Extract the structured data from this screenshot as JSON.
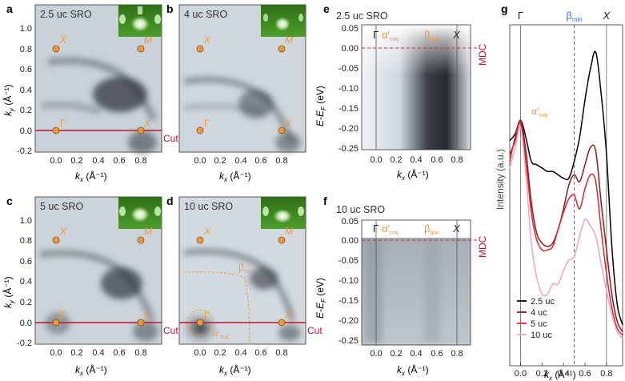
{
  "panels": {
    "a": {
      "letter": "a",
      "sample": "2.5 uc SRO"
    },
    "b": {
      "letter": "b",
      "sample": "4 uc SRO"
    },
    "c": {
      "letter": "c",
      "sample": "5 uc SRO"
    },
    "d": {
      "letter": "d",
      "sample": "10 uc SRO"
    },
    "e": {
      "letter": "e",
      "sample": "2.5 uc SRO"
    },
    "f": {
      "letter": "f",
      "sample": "10 uc SRO"
    },
    "g": {
      "letter": "g"
    }
  },
  "points": {
    "gamma": "Γ",
    "x": "X",
    "m": "M",
    "x_bar": "X̄"
  },
  "bands": {
    "alpha_maj": "α′",
    "alpha_sub": "maj",
    "beta": "β",
    "beta_sub": "min"
  },
  "labels": {
    "cut": "Cut",
    "mdc": "MDC"
  },
  "axes": {
    "ky_label": "k",
    "ky_sub": "y",
    "ky_unit": " (Å⁻¹)",
    "kx_label": "k",
    "kx_sub": "x",
    "kx_unit": " (Å⁻¹)",
    "energy_label": "E-E",
    "energy_sub": "F",
    "energy_unit": " (eV)",
    "intensity_label": "Intensity (a.u.)",
    "ky_ticks": [
      "1.0",
      "0.8",
      "0.6",
      "0.4",
      "0.2",
      "0.0",
      "-0.2"
    ],
    "kx_ticks": [
      "0.0",
      "0.2",
      "0.4",
      "0.6",
      "0.8"
    ],
    "e_ticks": [
      "0.05",
      "0.00",
      "-0.05",
      "-0.10",
      "-0.15",
      "-0.20",
      "-0.25"
    ]
  },
  "colors": {
    "orange": "#ef9a3c",
    "cut_red": "#c8102e",
    "beta_blue": "#4a6fd6",
    "led_green": "#3f8f23"
  },
  "chart_data": {
    "type": "line",
    "xlabel": "k_x (Å⁻¹)",
    "ylabel": "Intensity (a.u.)",
    "xlim": [
      -0.1,
      0.95
    ],
    "x_ticks": [
      0.0,
      0.2,
      0.4,
      0.6,
      0.8
    ],
    "markers": [
      {
        "label": "Γ",
        "x": 0.0,
        "style": "solid"
      },
      {
        "label": "β_min",
        "x": 0.5,
        "style": "dashed"
      },
      {
        "label": "X",
        "x": 0.8,
        "style": "solid"
      }
    ],
    "legend_placement": "bottom-left",
    "x": [
      -0.1,
      -0.05,
      0.0,
      0.05,
      0.1,
      0.15,
      0.2,
      0.25,
      0.3,
      0.35,
      0.4,
      0.45,
      0.5,
      0.55,
      0.6,
      0.65,
      0.7,
      0.75,
      0.8,
      0.85,
      0.9,
      0.95
    ],
    "series": [
      {
        "name": "2.5 uc",
        "color": "#000000",
        "values": [
          0.66,
          0.68,
          0.72,
          0.67,
          0.6,
          0.59,
          0.58,
          0.57,
          0.57,
          0.56,
          0.55,
          0.55,
          0.6,
          0.67,
          0.78,
          0.87,
          0.92,
          0.8,
          0.62,
          0.35,
          0.18,
          0.12
        ]
      },
      {
        "name": "4 uc",
        "color": "#8b1a1a",
        "values": [
          0.62,
          0.66,
          0.72,
          0.63,
          0.48,
          0.39,
          0.36,
          0.35,
          0.36,
          0.4,
          0.46,
          0.53,
          0.56,
          0.54,
          0.59,
          0.64,
          0.63,
          0.48,
          0.34,
          0.21,
          0.13,
          0.1
        ]
      },
      {
        "name": "5 uc",
        "color": "#e5222d",
        "values": [
          0.6,
          0.67,
          0.71,
          0.6,
          0.45,
          0.37,
          0.34,
          0.34,
          0.35,
          0.4,
          0.45,
          0.49,
          0.5,
          0.46,
          0.52,
          0.56,
          0.54,
          0.4,
          0.27,
          0.17,
          0.11,
          0.09
        ]
      },
      {
        "name": "10 uc",
        "color": "#f2a3bf",
        "values": [
          0.58,
          0.64,
          0.7,
          0.56,
          0.36,
          0.26,
          0.21,
          0.21,
          0.24,
          0.24,
          0.28,
          0.31,
          0.32,
          0.38,
          0.43,
          0.41,
          0.38,
          0.3,
          0.22,
          0.15,
          0.1,
          0.08
        ]
      }
    ]
  }
}
